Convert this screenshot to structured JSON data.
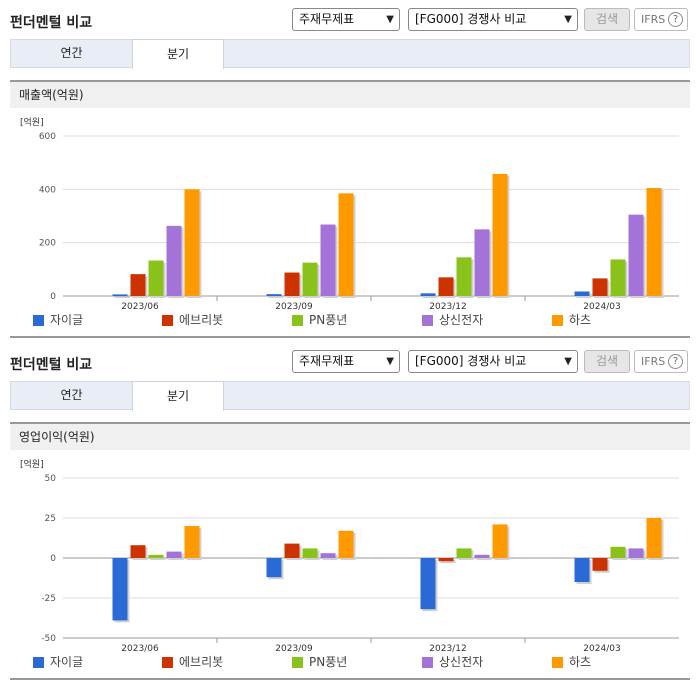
{
  "panels": [
    {
      "title": "펀더멘털 비교",
      "statement_select": "주재무제표",
      "compare_select": "[FG000] 경쟁사 비교",
      "search_label": "검색",
      "ifrs_label": "IFRS",
      "help_label": "?",
      "tabs": [
        "연간",
        "분기"
      ],
      "active_tab": "분기",
      "metric_label": "매출액(억원)",
      "unit_label": "[억원]",
      "legend": [
        "자이글",
        "에브리봇",
        "PN풍년",
        "상신전자",
        "하츠"
      ]
    },
    {
      "title": "펀더멘털 비교",
      "statement_select": "주재무제표",
      "compare_select": "[FG000] 경쟁사 비교",
      "search_label": "검색",
      "ifrs_label": "IFRS",
      "help_label": "?",
      "tabs": [
        "연간",
        "분기"
      ],
      "active_tab": "분기",
      "metric_label": "영업이익(억원)",
      "unit_label": "[억원]",
      "legend": [
        "자이글",
        "에브리봇",
        "PN풍년",
        "상신전자",
        "하츠"
      ]
    }
  ],
  "colors": {
    "자이글": "#2a6ad6",
    "에브리봇": "#cc3300",
    "PN풍년": "#88c21a",
    "상신전자": "#a373d8",
    "하츠": "#ff9900"
  },
  "chart_data": [
    {
      "type": "bar",
      "title": "매출액(억원)",
      "ylabel": "[억원]",
      "categories": [
        "2023/06",
        "2023/09",
        "2023/12",
        "2024/03"
      ],
      "ylim": [
        0,
        600
      ],
      "yticks": [
        0,
        200,
        400,
        600
      ],
      "series": [
        {
          "name": "자이글",
          "values": [
            6,
            7,
            10,
            17
          ]
        },
        {
          "name": "에브리봇",
          "values": [
            82,
            88,
            70,
            66
          ]
        },
        {
          "name": "PN풍년",
          "values": [
            133,
            125,
            145,
            137
          ]
        },
        {
          "name": "상신전자",
          "values": [
            263,
            268,
            250,
            305
          ]
        },
        {
          "name": "하츠",
          "values": [
            400,
            385,
            458,
            405
          ]
        }
      ]
    },
    {
      "type": "bar",
      "title": "영업이익(억원)",
      "ylabel": "[억원]",
      "categories": [
        "2023/06",
        "2023/09",
        "2023/12",
        "2024/03"
      ],
      "ylim": [
        -50,
        50
      ],
      "yticks": [
        -50,
        -25,
        0,
        25,
        50
      ],
      "series": [
        {
          "name": "자이글",
          "values": [
            -39,
            -12,
            -32,
            -15
          ]
        },
        {
          "name": "에브리봇",
          "values": [
            8,
            9,
            -2,
            -8
          ]
        },
        {
          "name": "PN풍년",
          "values": [
            2,
            6,
            6,
            7
          ]
        },
        {
          "name": "상신전자",
          "values": [
            4,
            3,
            2,
            6
          ]
        },
        {
          "name": "하츠",
          "values": [
            20,
            17,
            21,
            25
          ]
        }
      ]
    }
  ]
}
